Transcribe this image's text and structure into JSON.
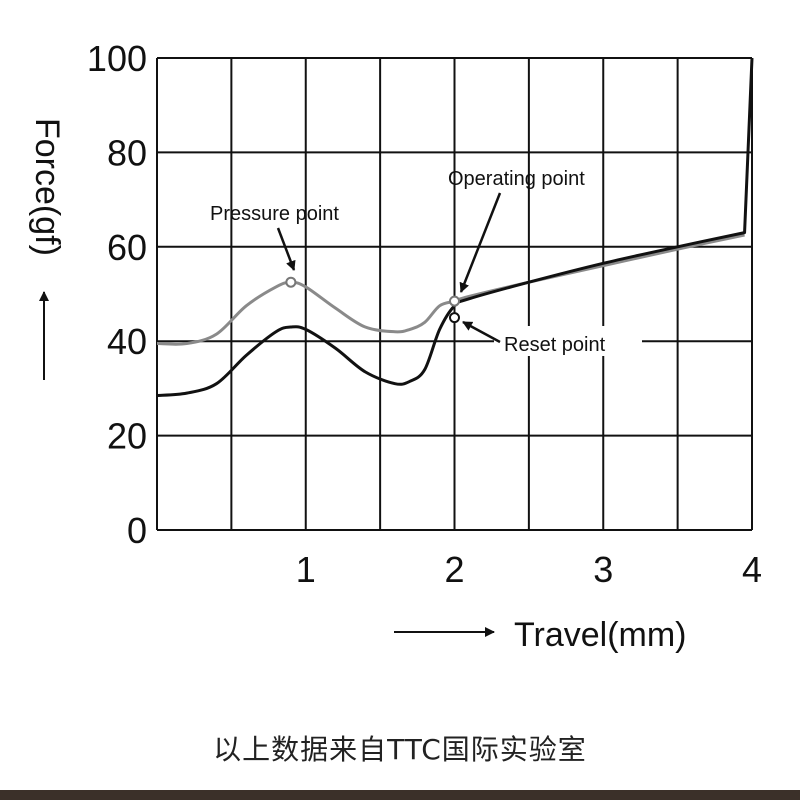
{
  "chart_data": {
    "type": "line",
    "xlabel": "Travel(mm)",
    "ylabel": "Force(gf)",
    "xlim": [
      0,
      4
    ],
    "ylim": [
      0,
      100
    ],
    "x_ticks": [
      "1",
      "2",
      "3",
      "4"
    ],
    "y_ticks": [
      "0",
      "20",
      "40",
      "60",
      "80",
      "100"
    ],
    "grid": true,
    "series": [
      {
        "color": "#8a8a8a",
        "x": [
          0,
          0.2,
          0.4,
          0.6,
          0.8,
          0.9,
          1.0,
          1.2,
          1.4,
          1.6,
          1.7,
          1.8,
          1.9,
          2.0,
          2.1,
          2.5,
          3.0,
          3.5,
          3.95
        ],
        "y": [
          39.5,
          39.5,
          41.5,
          47.5,
          51.5,
          52.5,
          51.5,
          47.0,
          43.0,
          42.0,
          42.5,
          44.0,
          47.5,
          48.5,
          49.5,
          52.5,
          56.0,
          59.5,
          62.5
        ]
      },
      {
        "color": "#111111",
        "x": [
          0,
          0.2,
          0.4,
          0.6,
          0.8,
          0.9,
          1.0,
          1.2,
          1.4,
          1.6,
          1.7,
          1.8,
          1.9,
          2.0,
          2.1,
          2.5,
          3.0,
          3.5,
          3.95,
          4.0
        ],
        "y": [
          28.5,
          29.0,
          31.0,
          37.0,
          42.0,
          43.0,
          42.5,
          38.5,
          33.5,
          31.0,
          31.5,
          34.0,
          42.5,
          47.5,
          49.0,
          52.5,
          56.5,
          60.0,
          63.0,
          100
        ]
      }
    ],
    "annotations": [
      {
        "label": "Pressure point",
        "x": 0.9,
        "y": 52.5
      },
      {
        "label": "Operating point",
        "x": 2.0,
        "y": 48.5
      },
      {
        "label": "Reset point",
        "x": 2.0,
        "y": 45.0
      }
    ]
  },
  "caption": "以上数据来自TTC国际实验室",
  "colors": {
    "grid": "#111111",
    "footer": "#3b3029"
  }
}
